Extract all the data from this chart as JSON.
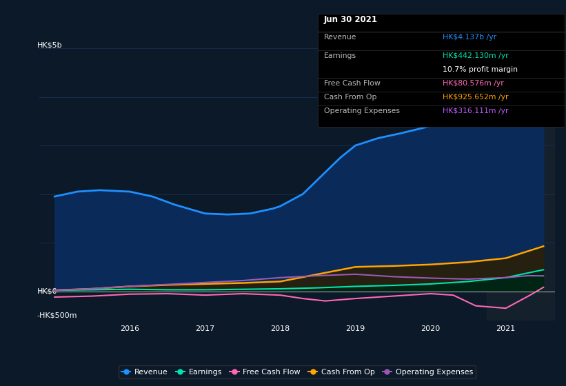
{
  "bg_color": "#0c1929",
  "plot_bg_color": "#0c1929",
  "grid_color": "#1a3050",
  "ylabel_top": "HK$5b",
  "ylabel_zero": "HK$0",
  "ylabel_bottom": "-HK$500m",
  "x_labels": [
    "2016",
    "2017",
    "2018",
    "2019",
    "2020",
    "2021"
  ],
  "info_box": {
    "title": "Jun 30 2021",
    "rows": [
      {
        "label": "Revenue",
        "value": "HK$4.137b",
        "suffix": " /yr",
        "value_color": "#1e90ff"
      },
      {
        "label": "Earnings",
        "value": "HK$442.130m",
        "suffix": " /yr",
        "value_color": "#00e5b0"
      },
      {
        "label": "",
        "value": "10.7%",
        "suffix": " profit margin",
        "value_color": "#ffffff"
      },
      {
        "label": "Free Cash Flow",
        "value": "HK$80.576m",
        "suffix": " /yr",
        "value_color": "#ff69b4"
      },
      {
        "label": "Cash From Op",
        "value": "HK$925.652m",
        "suffix": " /yr",
        "value_color": "#ffa500"
      },
      {
        "label": "Operating Expenses",
        "value": "HK$316.111m",
        "suffix": " /yr",
        "value_color": "#bf5fff"
      }
    ]
  },
  "series": {
    "revenue": {
      "color": "#1e90ff",
      "fill_color": "#0a2a5a",
      "label": "Revenue",
      "data_x": [
        2015.0,
        2015.3,
        2015.6,
        2016.0,
        2016.3,
        2016.6,
        2017.0,
        2017.3,
        2017.6,
        2017.9,
        2018.0,
        2018.3,
        2018.5,
        2018.8,
        2019.0,
        2019.3,
        2019.6,
        2020.0,
        2020.3,
        2020.6,
        2021.0,
        2021.3,
        2021.5
      ],
      "data_y": [
        1.95,
        2.05,
        2.08,
        2.05,
        1.95,
        1.78,
        1.6,
        1.58,
        1.6,
        1.7,
        1.75,
        2.0,
        2.3,
        2.75,
        3.0,
        3.15,
        3.25,
        3.4,
        3.5,
        3.6,
        3.72,
        3.9,
        4.137
      ]
    },
    "earnings": {
      "color": "#00e5b0",
      "fill_color": "#002a1a",
      "label": "Earnings",
      "data_x": [
        2015.0,
        2015.5,
        2016.0,
        2016.5,
        2017.0,
        2017.5,
        2018.0,
        2018.5,
        2019.0,
        2019.5,
        2020.0,
        2020.5,
        2021.0,
        2021.5
      ],
      "data_y": [
        0.02,
        0.03,
        0.04,
        0.03,
        0.03,
        0.04,
        0.05,
        0.07,
        0.1,
        0.12,
        0.15,
        0.2,
        0.28,
        0.4425
      ]
    },
    "free_cash_flow": {
      "color": "#ff69b4",
      "label": "Free Cash Flow",
      "data_x": [
        2015.0,
        2015.5,
        2016.0,
        2016.5,
        2017.0,
        2017.5,
        2018.0,
        2018.3,
        2018.6,
        2019.0,
        2019.5,
        2020.0,
        2020.3,
        2020.6,
        2021.0,
        2021.3,
        2021.5
      ],
      "data_y": [
        -0.12,
        -0.1,
        -0.06,
        -0.05,
        -0.08,
        -0.05,
        -0.08,
        -0.15,
        -0.2,
        -0.15,
        -0.1,
        -0.05,
        -0.08,
        -0.3,
        -0.35,
        -0.1,
        0.08
      ]
    },
    "cash_from_op": {
      "color": "#ffa500",
      "fill_color": "#2a2000",
      "label": "Cash From Op",
      "data_x": [
        2015.0,
        2015.5,
        2016.0,
        2016.5,
        2017.0,
        2017.5,
        2018.0,
        2018.5,
        2019.0,
        2019.5,
        2020.0,
        2020.5,
        2021.0,
        2021.5
      ],
      "data_y": [
        0.02,
        0.05,
        0.1,
        0.13,
        0.15,
        0.17,
        0.2,
        0.35,
        0.5,
        0.52,
        0.55,
        0.6,
        0.68,
        0.9256
      ]
    },
    "operating_expenses": {
      "color": "#9b59b6",
      "label": "Operating Expenses",
      "data_x": [
        2015.0,
        2015.5,
        2016.0,
        2016.5,
        2017.0,
        2017.5,
        2018.0,
        2018.5,
        2019.0,
        2019.5,
        2020.0,
        2020.5,
        2021.0,
        2021.3,
        2021.5
      ],
      "data_y": [
        0.02,
        0.05,
        0.1,
        0.14,
        0.18,
        0.22,
        0.28,
        0.32,
        0.35,
        0.3,
        0.27,
        0.25,
        0.28,
        0.32,
        0.316
      ]
    }
  },
  "ylim": [
    -0.6,
    5.2
  ],
  "xlim": [
    2014.8,
    2021.65
  ]
}
